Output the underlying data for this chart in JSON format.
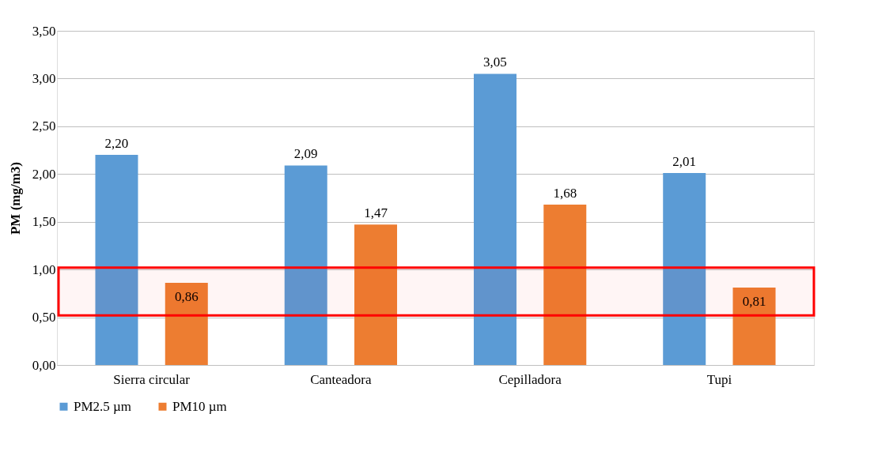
{
  "chart_data": {
    "type": "bar",
    "ylabel": "PM (mg/m3)",
    "categories": [
      "Sierra circular",
      "Canteadora",
      "Cepilladora",
      "Tupi"
    ],
    "series": [
      {
        "name": "PM2.5 µm",
        "color": "#5b9bd5",
        "values": [
          2.2,
          2.09,
          3.05,
          2.01
        ],
        "value_labels": [
          "2,20",
          "2,09",
          "3,05",
          "2,01"
        ]
      },
      {
        "name": "PM10 µm",
        "color": "#ed7d31",
        "values": [
          0.86,
          1.47,
          1.68,
          0.81
        ],
        "value_labels": [
          "0,86",
          "1,47",
          "1,68",
          "0,81"
        ]
      }
    ],
    "ylim": [
      0,
      3.5
    ],
    "yticks": [
      {
        "value": 0,
        "label": "0,00"
      },
      {
        "value": 0.5,
        "label": "0,50"
      },
      {
        "value": 1,
        "label": "1,00"
      },
      {
        "value": 1.5,
        "label": "1,50"
      },
      {
        "value": 2,
        "label": "2,00"
      },
      {
        "value": 2.5,
        "label": "2,50"
      },
      {
        "value": 3,
        "label": "3,00"
      },
      {
        "value": 3.5,
        "label": "3,50"
      }
    ],
    "bands": [
      {
        "axis": "y",
        "from": 0.52,
        "to": 1.02,
        "color": "#ff0000"
      }
    ],
    "grid": "y",
    "legend": "bottom"
  }
}
